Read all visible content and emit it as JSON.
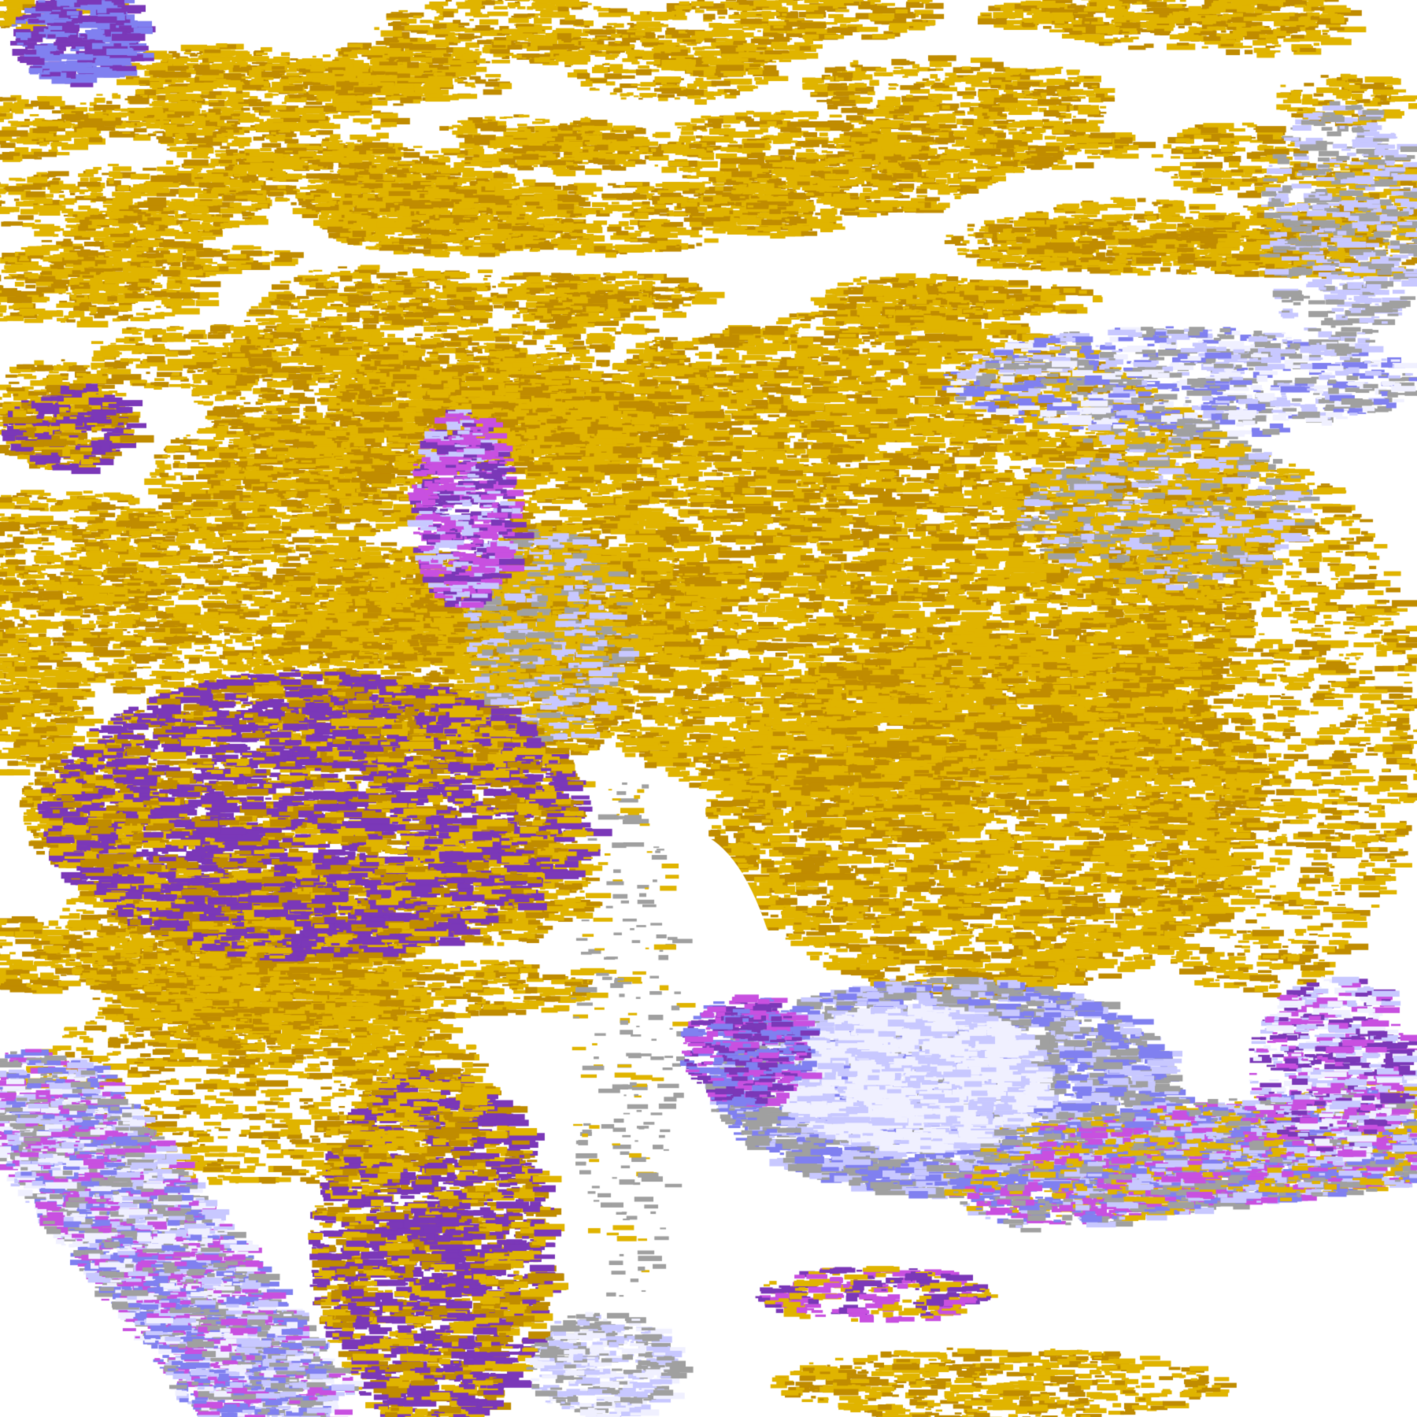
{
  "image": {
    "kind": "satellite cloud-classification composite",
    "background_color": "#ffffff",
    "palette": {
      "gold": "#e0b400",
      "dark_gold": "#c08c00",
      "purple": "#7b38b8",
      "magenta": "#c850e0",
      "lavender": "#c8c8ff",
      "pale": "#f0f0ff",
      "blue": "#8080f0",
      "gray": "#a0a0a0"
    }
  }
}
